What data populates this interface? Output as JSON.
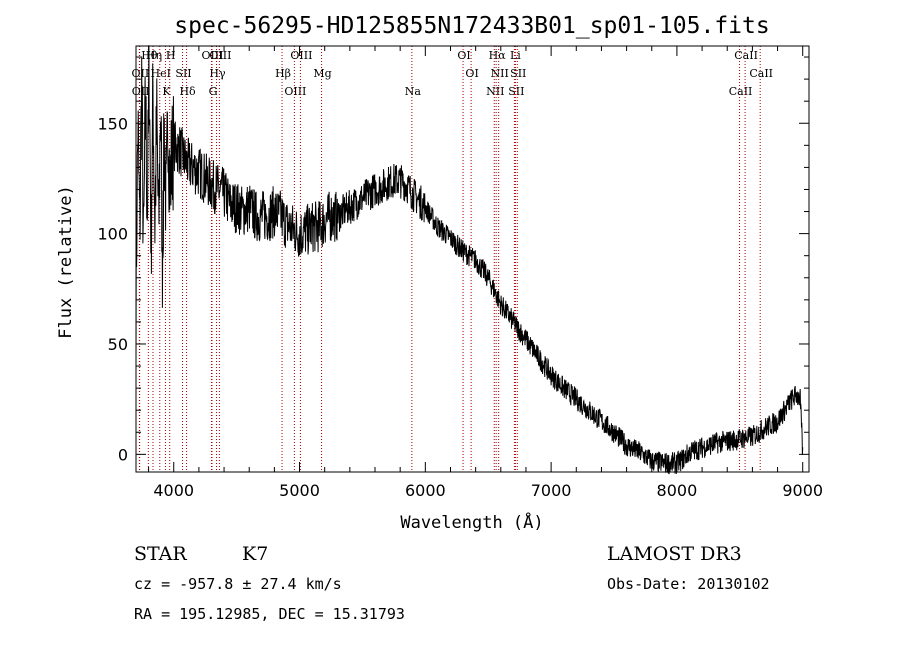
{
  "chart_data": {
    "type": "line",
    "title": "spec-56295-HD125855N172433B01_sp01-105.fits",
    "xlabel": "Wavelength (Å)",
    "ylabel": "Flux (relative)",
    "xlim": [
      3700,
      9050
    ],
    "ylim": [
      -8,
      185
    ],
    "x_ticks": [
      4000,
      5000,
      6000,
      7000,
      8000,
      9000
    ],
    "x_tick_labels": [
      "4000",
      "5000",
      "6000",
      "7000",
      "8000",
      "9000"
    ],
    "y_ticks": [
      0,
      50,
      100,
      150
    ],
    "y_tick_labels": [
      "0",
      "50",
      "100",
      "150"
    ],
    "series": [
      {
        "name": "flux",
        "x": [
          3700,
          3715,
          3730,
          3745,
          3760,
          3775,
          3790,
          3805,
          3820,
          3835,
          3850,
          3865,
          3880,
          3895,
          3910,
          3925,
          3940,
          3955,
          3970,
          3985,
          4000,
          4050,
          4100,
          4150,
          4200,
          4250,
          4300,
          4350,
          4400,
          4450,
          4500,
          4550,
          4600,
          4650,
          4700,
          4750,
          4800,
          4850,
          4900,
          4950,
          5000,
          5050,
          5100,
          5150,
          5200,
          5250,
          5300,
          5350,
          5400,
          5450,
          5500,
          5550,
          5600,
          5650,
          5700,
          5750,
          5800,
          5850,
          5900,
          5950,
          6000,
          6100,
          6200,
          6300,
          6400,
          6500,
          6550,
          6600,
          6650,
          6700,
          6750,
          6800,
          6900,
          7000,
          7100,
          7200,
          7300,
          7400,
          7500,
          7600,
          7700,
          7800,
          7900,
          8000,
          8050,
          8100,
          8200,
          8300,
          8400,
          8500,
          8600,
          8700,
          8800,
          8900,
          8950,
          8980,
          9000
        ],
        "y": [
          70,
          150,
          100,
          170,
          90,
          160,
          110,
          175,
          95,
          165,
          105,
          150,
          100,
          160,
          90,
          145,
          110,
          155,
          120,
          135,
          140,
          138,
          132,
          130,
          128,
          125,
          122,
          120,
          118,
          113,
          112,
          110,
          112,
          108,
          108,
          108,
          110,
          108,
          104,
          102,
          100,
          101,
          103,
          103,
          106,
          108,
          108,
          110,
          112,
          114,
          116,
          118,
          120,
          121,
          123,
          124,
          124,
          122,
          118,
          115,
          112,
          103,
          98,
          92,
          88,
          80,
          74,
          68,
          64,
          60,
          56,
          52,
          44,
          36,
          30,
          25,
          20,
          15,
          10,
          4,
          1,
          -3,
          -4,
          -4,
          -2,
          1,
          3,
          5,
          6,
          7,
          8,
          12,
          15,
          24,
          27,
          25,
          0
        ]
      }
    ],
    "spectral_lines": [
      {
        "label": "Hθ",
        "x": 3798
      },
      {
        "label": "OII",
        "x": 3727
      },
      {
        "label": "OII",
        "x": 3729
      },
      {
        "label": "Hη",
        "x": 3835
      },
      {
        "label": "HeI",
        "x": 3889
      },
      {
        "label": "K",
        "x": 3934
      },
      {
        "label": "H",
        "x": 3968
      },
      {
        "label": "SII",
        "x": 4070
      },
      {
        "label": "Hδ",
        "x": 4102
      },
      {
        "label": "OIII",
        "x": 4300
      },
      {
        "label": "Hγ",
        "x": 4340
      },
      {
        "label": "G",
        "x": 4304
      },
      {
        "label": "OIII",
        "x": 4363
      },
      {
        "label": "Hβ",
        "x": 4861
      },
      {
        "label": "OIII",
        "x": 4959
      },
      {
        "label": "OIII",
        "x": 5007
      },
      {
        "label": "Mg",
        "x": 5175
      },
      {
        "label": "Na",
        "x": 5893
      },
      {
        "label": "OI",
        "x": 6300
      },
      {
        "label": "OI",
        "x": 6364
      },
      {
        "label": "NII",
        "x": 6548
      },
      {
        "label": "Hα",
        "x": 6563
      },
      {
        "label": "NII",
        "x": 6583
      },
      {
        "label": "SII",
        "x": 6716
      },
      {
        "label": "Li",
        "x": 6708
      },
      {
        "label": "SII",
        "x": 6731
      },
      {
        "label": "CaII",
        "x": 8498
      },
      {
        "label": "CaII",
        "x": 8542
      },
      {
        "label": "CaII",
        "x": 8662
      }
    ],
    "colors": {
      "spectrum": "#000000",
      "spectral_line": "#aa0000",
      "axes": "#000000"
    }
  },
  "info": {
    "object_type": "STAR",
    "subclass": "K7",
    "survey": "LAMOST DR3",
    "cz": "cz = -957.8 ± 27.4 km/s",
    "obs_date": "Obs-Date: 20130102",
    "coords": "RA = 195.12985, DEC =  15.31793"
  }
}
